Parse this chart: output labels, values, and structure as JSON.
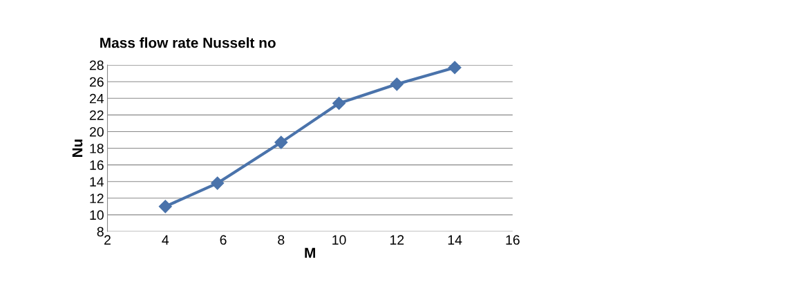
{
  "chart_data": {
    "type": "line",
    "title": "Mass flow rate Nusselt no",
    "xlabel": "M",
    "ylabel": "Nu",
    "x": [
      4,
      5.8,
      8,
      10,
      12,
      14
    ],
    "series": [
      {
        "color": "#4a73ab",
        "values": [
          11.0,
          13.8,
          18.7,
          23.4,
          25.7,
          27.7
        ]
      }
    ],
    "xlim": [
      2,
      16
    ],
    "xticks": [
      2,
      4,
      6,
      8,
      10,
      12,
      14,
      16
    ],
    "ylim": [
      8,
      28
    ],
    "yticks": [
      8,
      10,
      12,
      14,
      16,
      18,
      20,
      22,
      24,
      26,
      28
    ],
    "grid": "y",
    "marker": "diamond",
    "line_style": "solid"
  }
}
